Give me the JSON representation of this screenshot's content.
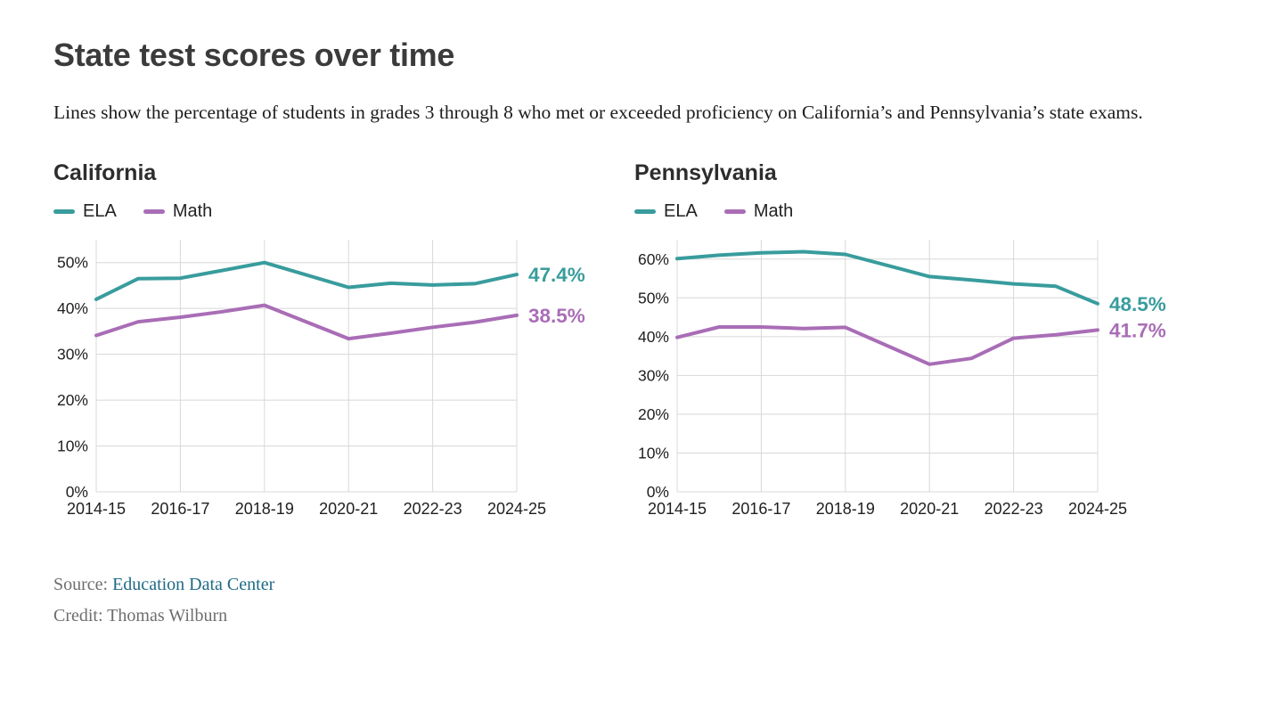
{
  "page": {
    "title": "State test scores over time",
    "subtitle": "Lines show the percentage of students in grades 3 through 8 who met or exceeded proficiency on California’s and Pennsylvania’s state exams.",
    "footer": {
      "source_label": "Source:",
      "source_link": "Education Data Center",
      "credit": "Credit: Thomas Wilburn"
    }
  },
  "colors": {
    "ela": "#399c9d",
    "math": "#a96db6",
    "grid": "#d8d8d8",
    "tick_text": "#1f1f1f",
    "title_text": "#3b3b3b",
    "link": "#1e6a85"
  },
  "chart_data": [
    {
      "type": "line",
      "title": "California",
      "grid": true,
      "legend_position": "top-left",
      "x_ticks": [
        "2014-15",
        "2016-17",
        "2018-19",
        "2020-21",
        "2022-23",
        "2024-25"
      ],
      "y_ticks": [
        "0%",
        "10%",
        "20%",
        "30%",
        "40%",
        "50%"
      ],
      "ylim": [
        0,
        55
      ],
      "series": [
        {
          "name": "ELA",
          "color": "#399c9d",
          "end_label": "47.4%",
          "points": [
            {
              "x": "2014-15",
              "y": 42.0
            },
            {
              "x": "2015-16",
              "y": 46.5
            },
            {
              "x": "2016-17",
              "y": 46.6
            },
            {
              "x": "2017-18",
              "y": 48.3
            },
            {
              "x": "2018-19",
              "y": 50.0
            },
            {
              "x": "2020-21",
              "y": 44.6
            },
            {
              "x": "2021-22",
              "y": 45.5
            },
            {
              "x": "2022-23",
              "y": 45.1
            },
            {
              "x": "2023-24",
              "y": 45.4
            },
            {
              "x": "2024-25",
              "y": 47.4
            }
          ]
        },
        {
          "name": "Math",
          "color": "#a96db6",
          "end_label": "38.5%",
          "points": [
            {
              "x": "2014-15",
              "y": 34.1
            },
            {
              "x": "2015-16",
              "y": 37.1
            },
            {
              "x": "2016-17",
              "y": 38.1
            },
            {
              "x": "2017-18",
              "y": 39.3
            },
            {
              "x": "2018-19",
              "y": 40.7
            },
            {
              "x": "2020-21",
              "y": 33.4
            },
            {
              "x": "2021-22",
              "y": 34.6
            },
            {
              "x": "2022-23",
              "y": 35.9
            },
            {
              "x": "2023-24",
              "y": 37.0
            },
            {
              "x": "2024-25",
              "y": 38.5
            }
          ]
        }
      ]
    },
    {
      "type": "line",
      "title": "Pennsylvania",
      "grid": true,
      "legend_position": "top-left",
      "x_ticks": [
        "2014-15",
        "2016-17",
        "2018-19",
        "2020-21",
        "2022-23",
        "2024-25"
      ],
      "y_ticks": [
        "0%",
        "10%",
        "20%",
        "30%",
        "40%",
        "50%",
        "60%"
      ],
      "ylim": [
        0,
        65
      ],
      "series": [
        {
          "name": "ELA",
          "color": "#399c9d",
          "end_label": "48.5%",
          "points": [
            {
              "x": "2014-15",
              "y": 60.1
            },
            {
              "x": "2015-16",
              "y": 61.0
            },
            {
              "x": "2016-17",
              "y": 61.6
            },
            {
              "x": "2017-18",
              "y": 61.9
            },
            {
              "x": "2018-19",
              "y": 61.2
            },
            {
              "x": "2020-21",
              "y": 55.5
            },
            {
              "x": "2021-22",
              "y": 54.6
            },
            {
              "x": "2022-23",
              "y": 53.6
            },
            {
              "x": "2023-24",
              "y": 53.0
            },
            {
              "x": "2024-25",
              "y": 48.5
            }
          ]
        },
        {
          "name": "Math",
          "color": "#a96db6",
          "end_label": "41.7%",
          "points": [
            {
              "x": "2014-15",
              "y": 39.8
            },
            {
              "x": "2015-16",
              "y": 42.5
            },
            {
              "x": "2016-17",
              "y": 42.5
            },
            {
              "x": "2017-18",
              "y": 42.1
            },
            {
              "x": "2018-19",
              "y": 42.4
            },
            {
              "x": "2020-21",
              "y": 32.9
            },
            {
              "x": "2021-22",
              "y": 34.4
            },
            {
              "x": "2022-23",
              "y": 39.6
            },
            {
              "x": "2023-24",
              "y": 40.5
            },
            {
              "x": "2024-25",
              "y": 41.7
            }
          ]
        }
      ]
    }
  ]
}
